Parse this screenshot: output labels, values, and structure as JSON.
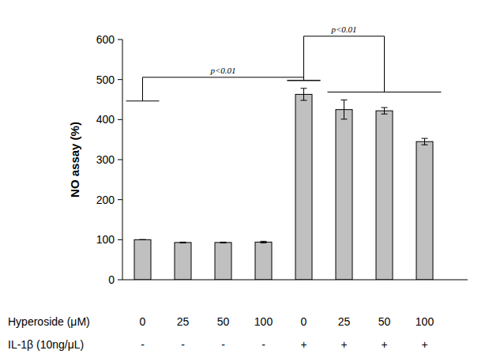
{
  "chart_data": {
    "type": "bar",
    "y_label": "NO assay (%)",
    "categories": [
      "0",
      "25",
      "50",
      "100",
      "0",
      "25",
      "50",
      "100"
    ],
    "category_label": "Hyperoside (μM)",
    "treatment_label": "IL-1β (10ng/μL)",
    "treatment": [
      "-",
      "-",
      "-",
      "-",
      "+",
      "+",
      "+",
      "+"
    ],
    "values": [
      100,
      93,
      93,
      94,
      463,
      425,
      422,
      345
    ],
    "errors": [
      0,
      1,
      1,
      2,
      15,
      24,
      8,
      8
    ],
    "color": "#c0c0c0",
    "ylim": [
      0,
      600
    ],
    "yticks": [
      0,
      100,
      200,
      300,
      400,
      500,
      600
    ],
    "grid": false,
    "annotations": [
      {
        "text": "p<0.01",
        "groups": [
          [
            0
          ],
          [
            4
          ]
        ]
      },
      {
        "text": "p<0.01",
        "groups": [
          [
            4
          ],
          [
            5,
            6,
            7
          ]
        ]
      }
    ]
  }
}
